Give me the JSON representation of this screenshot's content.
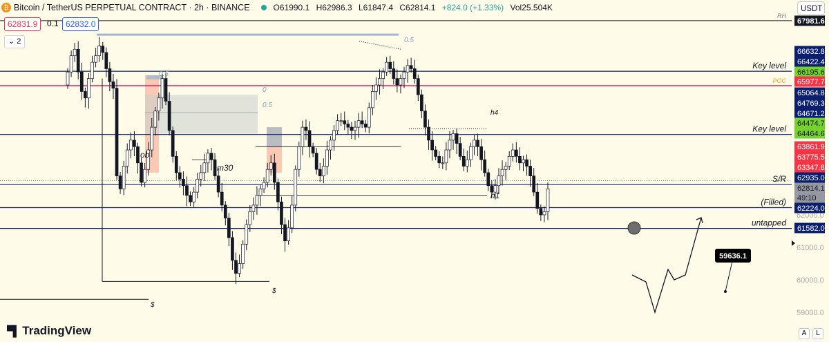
{
  "header": {
    "symbol": "Bitcoin / TetherUS PERPETUAL CONTRACT · 2h · BINANCE",
    "open": "O61990.1",
    "high": "H62986.3",
    "low": "L61847.4",
    "close": "C62814.1",
    "change": "+824.0 (+1.33%)",
    "volume": "Vol25.504K",
    "bid": "62831.9",
    "spread": "0.1",
    "ask": "62832.0",
    "collapse_count": "2",
    "currency": "USDT"
  },
  "logo": {
    "text": "TradingView"
  },
  "corner_buttons": {
    "auto": "A",
    "log": "L"
  },
  "colors": {
    "accent": "#2962ff",
    "up": "#26a69a",
    "down": "#ef5350",
    "level": "#0d1f6b",
    "poc": "#e91e63",
    "level_label_bg": "#0b1f6e",
    "green_label_bg": "#76d12d",
    "red_label_bg": "#f23645"
  },
  "chart_data": {
    "type": "candlestick",
    "title": "",
    "ylim": [
      58800,
      68500
    ],
    "yticks": [
      62000.0,
      61000.0,
      60000.0,
      59000.0
    ],
    "ytick_labels": [
      "62000.0",
      "61000.0",
      "60000.0",
      "59000.0"
    ],
    "candles_approx_close": [
      66400,
      66900,
      67100,
      66400,
      65800,
      65600,
      66200,
      66700,
      66900,
      67200,
      67000,
      66500,
      66100,
      65900,
      63200,
      62800,
      63500,
      64000,
      64300,
      64100,
      63600,
      63000,
      63400,
      64000,
      64700,
      65200,
      65600,
      66200,
      65500,
      64600,
      63800,
      63300,
      63100,
      62900,
      62600,
      62400,
      62700,
      63100,
      63300,
      63600,
      63900,
      63700,
      63200,
      62700,
      62300,
      61900,
      61300,
      60600,
      60200,
      60500,
      61100,
      61700,
      62100,
      62300,
      62600,
      62800,
      63000,
      63400,
      63600,
      63000,
      62400,
      61700,
      61200,
      61600,
      62300,
      63400,
      64100,
      64700,
      64600,
      64100,
      63900,
      63400,
      63200,
      63500,
      64000,
      64300,
      64600,
      64900,
      64900,
      64800,
      64700,
      64600,
      64700,
      64900,
      64800,
      64700,
      65300,
      65800,
      66000,
      66200,
      66400,
      66700,
      66500,
      66200,
      66000,
      66200,
      66400,
      66600,
      66500,
      66200,
      65700,
      65200,
      64700,
      64300,
      64000,
      63800,
      63600,
      63600,
      64000,
      64300,
      64500,
      64200,
      63800,
      63500,
      63700,
      64100,
      64300,
      64100,
      63700,
      63300,
      62900,
      62700,
      62900,
      63200,
      63400,
      63500,
      63800,
      64000,
      63800,
      63600,
      63700,
      63500,
      63200,
      62700,
      62200,
      62000,
      62100,
      62800
    ],
    "levels": [
      {
        "label": "RH",
        "price": "67981.6"
      },
      {
        "label": "Key level",
        "price": "66422.4"
      },
      {
        "label": "POC",
        "price": "65977.7"
      },
      {
        "label": "Key level",
        "price": "64474.7"
      },
      {
        "label": "S/R",
        "price": "62935.0"
      },
      {
        "label": "(Filled)",
        "price": "62224.0"
      },
      {
        "label": "untapped",
        "price": "61582.0"
      }
    ],
    "price_labels": [
      {
        "text": "67981.6",
        "kind": "dark"
      },
      {
        "text": "66632.8",
        "kind": "navy"
      },
      {
        "text": "66422.4",
        "kind": "navy"
      },
      {
        "text": "66195.6",
        "kind": "green"
      },
      {
        "text": "65977.7",
        "kind": "red"
      },
      {
        "text": "65064.8",
        "kind": "navy"
      },
      {
        "text": "64769.3",
        "kind": "navy"
      },
      {
        "text": "64671.2",
        "kind": "navy"
      },
      {
        "text": "64474.7",
        "kind": "green"
      },
      {
        "text": "64464.6",
        "kind": "green"
      },
      {
        "text": "63861.9",
        "kind": "red"
      },
      {
        "text": "63775.5",
        "kind": "red"
      },
      {
        "text": "63347.8",
        "kind": "red"
      },
      {
        "text": "62935.0",
        "kind": "navy"
      },
      {
        "text": "62814.1",
        "kind": "gray"
      },
      {
        "text": "49:10",
        "kind": "gray"
      },
      {
        "text": "62224.0",
        "kind": "navy"
      },
      {
        "text": "61582.0",
        "kind": "navy"
      }
    ],
    "annotations": [
      {
        "text": "0.5"
      },
      {
        "text": "0.5"
      },
      {
        "text": "0"
      },
      {
        "text": "0.5"
      },
      {
        "text": "ob"
      },
      {
        "text": "m30"
      },
      {
        "text": "h4"
      },
      {
        "text": "h1"
      },
      {
        "text": "$"
      },
      {
        "text": "$"
      }
    ],
    "projection_target": "59636.1",
    "grid": false,
    "legend": "none"
  }
}
